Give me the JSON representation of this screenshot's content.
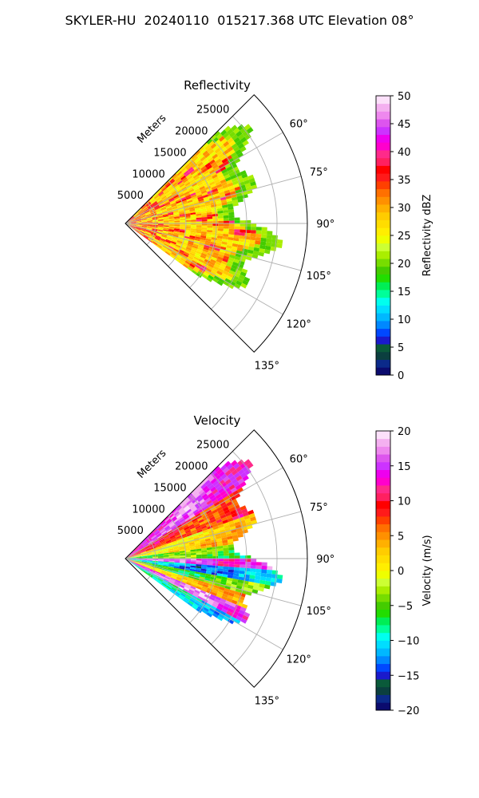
{
  "figure_title": "SKYLER-HU  20240110  015217.368 UTC Elevation 08°",
  "chart_data": [
    {
      "type": "heatmap",
      "projection": "polar-sector",
      "title": "Reflectivity",
      "radial_label": "Meters",
      "radial_ticks": [
        "5000",
        "10000",
        "15000",
        "20000",
        "25000"
      ],
      "radial_tick_values": [
        5000,
        10000,
        15000,
        20000,
        25000
      ],
      "angle_ticks": [
        "60°",
        "75°",
        "90°",
        "105°",
        "120°",
        "135°"
      ],
      "angle_tick_values": [
        60,
        75,
        90,
        105,
        120,
        135
      ],
      "azimuth_range": [
        45,
        135
      ],
      "range_max": 30000,
      "data_azimuth_range": [
        45,
        126
      ],
      "data_range_max_approx": 26000,
      "grid": true,
      "colorbar": {
        "label": "Reflectivity dBZ",
        "min": 0,
        "max": 50,
        "ticks": [
          "0",
          "5",
          "10",
          "15",
          "20",
          "25",
          "30",
          "35",
          "40",
          "45",
          "50"
        ],
        "colors": [
          "#0b0b6e",
          "#0b2a8a",
          "#0b3f3f",
          "#0a5a3a",
          "#1a1acc",
          "#0048ff",
          "#0088ff",
          "#00b8ff",
          "#00ddff",
          "#00ffee",
          "#00ff99",
          "#00ee55",
          "#22dd00",
          "#44cc00",
          "#77dd00",
          "#aaee00",
          "#ccff33",
          "#eeff00",
          "#ffee00",
          "#ffdd00",
          "#ffcc00",
          "#ffb000",
          "#ff9000",
          "#ff7000",
          "#ff4000",
          "#ff1a1a",
          "#ff0000",
          "#ff2060",
          "#ff2a8a",
          "#ff00cc",
          "#ee00ee",
          "#cc33ff",
          "#dd55ee",
          "#ee88ee",
          "#f4b0f0",
          "#fce0fa"
        ]
      },
      "dominant_values_dbz": {
        "background": 28,
        "band_near_field": 36,
        "edge": 20
      }
    },
    {
      "type": "heatmap",
      "projection": "polar-sector",
      "title": "Velocity",
      "radial_label": "Meters",
      "radial_ticks": [
        "5000",
        "10000",
        "15000",
        "20000",
        "25000"
      ],
      "radial_tick_values": [
        5000,
        10000,
        15000,
        20000,
        25000
      ],
      "angle_ticks": [
        "60°",
        "75°",
        "90°",
        "105°",
        "120°",
        "135°"
      ],
      "angle_tick_values": [
        60,
        75,
        90,
        105,
        120,
        135
      ],
      "azimuth_range": [
        45,
        135
      ],
      "range_max": 30000,
      "data_azimuth_range": [
        45,
        126
      ],
      "data_range_max_approx": 26000,
      "grid": true,
      "colorbar": {
        "label": "Velocity (m/s)",
        "min": -20,
        "max": 20,
        "ticks": [
          "−20",
          "−15",
          "−10",
          "−5",
          "0",
          "5",
          "10",
          "15",
          "20"
        ],
        "colors": [
          "#0b0b6e",
          "#0b2a8a",
          "#0b3f3f",
          "#0a5a3a",
          "#1a1acc",
          "#0048ff",
          "#0088ff",
          "#00b8ff",
          "#00ddff",
          "#00ffee",
          "#00ff99",
          "#00ee55",
          "#22dd00",
          "#44cc00",
          "#77dd00",
          "#aaee00",
          "#ccff33",
          "#eeff00",
          "#ffee00",
          "#ffdd00",
          "#ffcc00",
          "#ffb000",
          "#ff9000",
          "#ff7000",
          "#ff4000",
          "#ff1a1a",
          "#ff0000",
          "#ff2060",
          "#ff2a8a",
          "#ff00cc",
          "#ee00ee",
          "#cc33ff",
          "#dd55ee",
          "#ee88ee",
          "#f4b0f0",
          "#fce0fa"
        ]
      },
      "azimuth_velocity_bands": [
        {
          "az_from": 45,
          "az_to": 58,
          "value": 15
        },
        {
          "az_from": 58,
          "az_to": 70,
          "value": 8
        },
        {
          "az_from": 70,
          "az_to": 83,
          "value": 2
        },
        {
          "az_from": 83,
          "az_to": 90,
          "value": -5
        },
        {
          "az_from": 90,
          "az_to": 95,
          "value": 15
        },
        {
          "az_from": 95,
          "az_to": 100,
          "value": -12
        },
        {
          "az_from": 100,
          "az_to": 106,
          "value": -5
        },
        {
          "az_from": 106,
          "az_to": 112,
          "value": 3
        },
        {
          "az_from": 112,
          "az_to": 118,
          "value": 16
        },
        {
          "az_from": 118,
          "az_to": 126,
          "value": -10
        }
      ]
    }
  ]
}
